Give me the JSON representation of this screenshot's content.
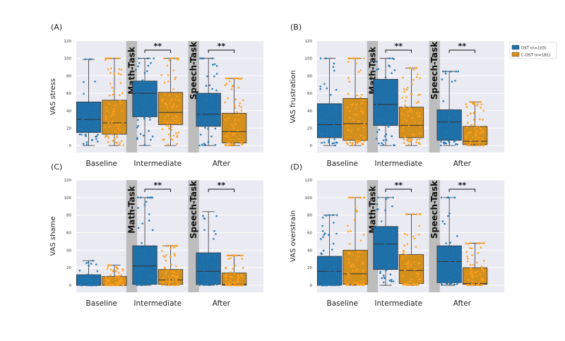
{
  "legend": {
    "entries": [
      {
        "label": "DST (n=103)",
        "color": "#1f6fa8"
      },
      {
        "label": "C-DST (n=181)",
        "color": "#d4901d"
      }
    ]
  },
  "colors": {
    "dst_box": "#1f6fa8",
    "cdst_box": "#d4901d",
    "dst_dot": "#1f77b4",
    "cdst_dot": "#ff9f1a",
    "plot_bg": "#eaeaf2",
    "task_band": "#bdbdbd"
  },
  "tasks": {
    "math": "Math-Task",
    "speech": "Speech-Task"
  },
  "significance": "**",
  "chart_data": [
    {
      "panel": "(A)",
      "type": "box",
      "ylabel": "VAS stress",
      "ylim": [
        -8,
        120
      ],
      "yticks": [
        0,
        20,
        40,
        60,
        80,
        100,
        120
      ],
      "categories": [
        "Baseline",
        "Intermediate",
        "After"
      ],
      "series": [
        {
          "name": "DST (n=103)",
          "boxes": [
            {
              "q1": 15,
              "median": 30,
              "q3": 50,
              "lo": 0,
              "hi": 99
            },
            {
              "q1": 33,
              "median": 60,
              "q3": 74,
              "lo": 0,
              "hi": 100
            },
            {
              "q1": 22,
              "median": 36,
              "q3": 60,
              "lo": 0,
              "hi": 100
            }
          ]
        },
        {
          "name": "C-DST (n=181)",
          "boxes": [
            {
              "q1": 13,
              "median": 26,
              "q3": 52,
              "lo": 0,
              "hi": 100
            },
            {
              "q1": 24,
              "median": 38,
              "q3": 61,
              "lo": 0,
              "hi": 100
            },
            {
              "q1": 3,
              "median": 16,
              "q3": 37,
              "lo": 0,
              "hi": 77
            }
          ]
        }
      ]
    },
    {
      "panel": "(B)",
      "type": "box",
      "ylabel": "VAS frustration",
      "ylim": [
        -8,
        120
      ],
      "yticks": [
        0,
        20,
        40,
        60,
        80,
        100,
        120
      ],
      "categories": [
        "Baseline",
        "Intermediate",
        "After"
      ],
      "series": [
        {
          "name": "DST (n=103)",
          "boxes": [
            {
              "q1": 9,
              "median": 24,
              "q3": 48,
              "lo": 0,
              "hi": 100
            },
            {
              "q1": 23,
              "median": 47,
              "q3": 76,
              "lo": 0,
              "hi": 100
            },
            {
              "q1": 6,
              "median": 27,
              "q3": 41,
              "lo": 0,
              "hi": 85
            }
          ]
        },
        {
          "name": "C-DST (n=181)",
          "boxes": [
            {
              "q1": 6,
              "median": 25,
              "q3": 54,
              "lo": 0,
              "hi": 100
            },
            {
              "q1": 9,
              "median": 23,
              "q3": 44,
              "lo": 0,
              "hi": 89
            },
            {
              "q1": 1,
              "median": 5,
              "q3": 22,
              "lo": 0,
              "hi": 50
            }
          ]
        }
      ]
    },
    {
      "panel": "(C)",
      "type": "box",
      "ylabel": "VAS shame",
      "ylim": [
        -8,
        120
      ],
      "yticks": [
        0,
        20,
        40,
        60,
        80,
        100,
        120
      ],
      "categories": [
        "Baseline",
        "Intermediate",
        "After"
      ],
      "series": [
        {
          "name": "DST (n=103)",
          "boxes": [
            {
              "q1": 0,
              "median": 0,
              "q3": 12,
              "lo": 0,
              "hi": 28
            },
            {
              "q1": 1,
              "median": 22,
              "q3": 45,
              "lo": 0,
              "hi": 100
            },
            {
              "q1": 1,
              "median": 16,
              "q3": 37,
              "lo": 0,
              "hi": 84
            }
          ]
        },
        {
          "name": "C-DST (n=181)",
          "boxes": [
            {
              "q1": 0,
              "median": 0,
              "q3": 10,
              "lo": 0,
              "hi": 23
            },
            {
              "q1": 1,
              "median": 6,
              "q3": 18,
              "lo": 0,
              "hi": 45
            },
            {
              "q1": 0,
              "median": 1,
              "q3": 14,
              "lo": 0,
              "hi": 34
            }
          ]
        }
      ]
    },
    {
      "panel": "(D)",
      "type": "box",
      "ylabel": "VAS overstrain",
      "ylim": [
        -8,
        120
      ],
      "yticks": [
        0,
        20,
        40,
        60,
        80,
        100,
        120
      ],
      "categories": [
        "Baseline",
        "Intermediate",
        "After"
      ],
      "series": [
        {
          "name": "DST (n=103)",
          "boxes": [
            {
              "q1": 0,
              "median": 16,
              "q3": 33,
              "lo": 0,
              "hi": 80
            },
            {
              "q1": 18,
              "median": 47,
              "q3": 67,
              "lo": 0,
              "hi": 100
            },
            {
              "q1": 3,
              "median": 27,
              "q3": 45,
              "lo": 0,
              "hi": 100
            }
          ]
        },
        {
          "name": "C-DST (n=181)",
          "boxes": [
            {
              "q1": 1,
              "median": 13,
              "q3": 40,
              "lo": 0,
              "hi": 100
            },
            {
              "q1": 2,
              "median": 17,
              "q3": 35,
              "lo": 0,
              "hi": 81
            },
            {
              "q1": 1,
              "median": 2,
              "q3": 20,
              "lo": 0,
              "hi": 48
            }
          ]
        }
      ]
    }
  ]
}
